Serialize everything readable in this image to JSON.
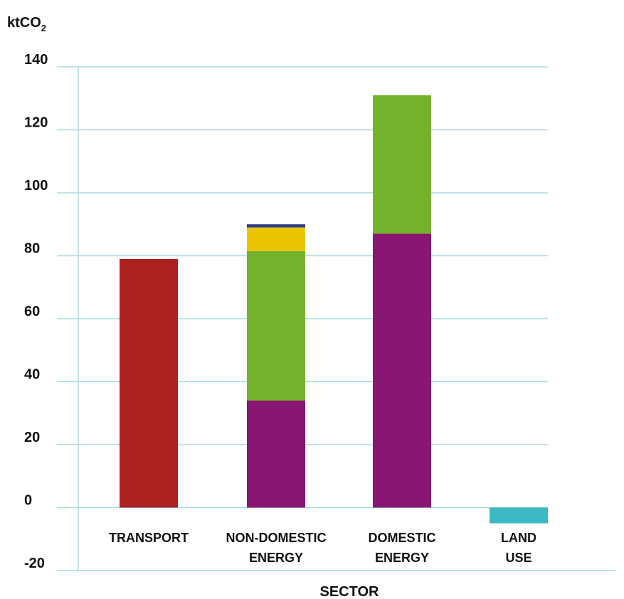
{
  "chart_data": {
    "type": "bar",
    "stacked": true,
    "ylabel": "ktCO",
    "ylabel_subscript": "2",
    "xlabel": "SECTOR",
    "ylim": [
      -20,
      140
    ],
    "yticks": [
      140,
      120,
      100,
      80,
      60,
      40,
      20,
      0,
      -20
    ],
    "categories": [
      [
        "TRANSPORT"
      ],
      [
        "NON-DOMESTIC",
        "ENERGY"
      ],
      [
        "DOMESTIC",
        "ENERGY"
      ],
      [
        "LAND",
        "USE"
      ]
    ],
    "series": [
      {
        "color": "#ae2121",
        "values": [
          79,
          0,
          0,
          0
        ]
      },
      {
        "color": "#881672",
        "values": [
          0,
          34,
          87,
          0
        ]
      },
      {
        "color": "#75b22c",
        "values": [
          0,
          47.5,
          44,
          0
        ]
      },
      {
        "color": "#ecc500",
        "values": [
          0,
          7.5,
          0,
          0
        ]
      },
      {
        "color": "#2b3a82",
        "values": [
          0,
          1,
          0,
          0
        ]
      },
      {
        "color": "#3cb9c2",
        "values": [
          0,
          0,
          0,
          -5
        ]
      }
    ],
    "grid": true,
    "grid_color": "#a9dce2",
    "legend": "none"
  }
}
